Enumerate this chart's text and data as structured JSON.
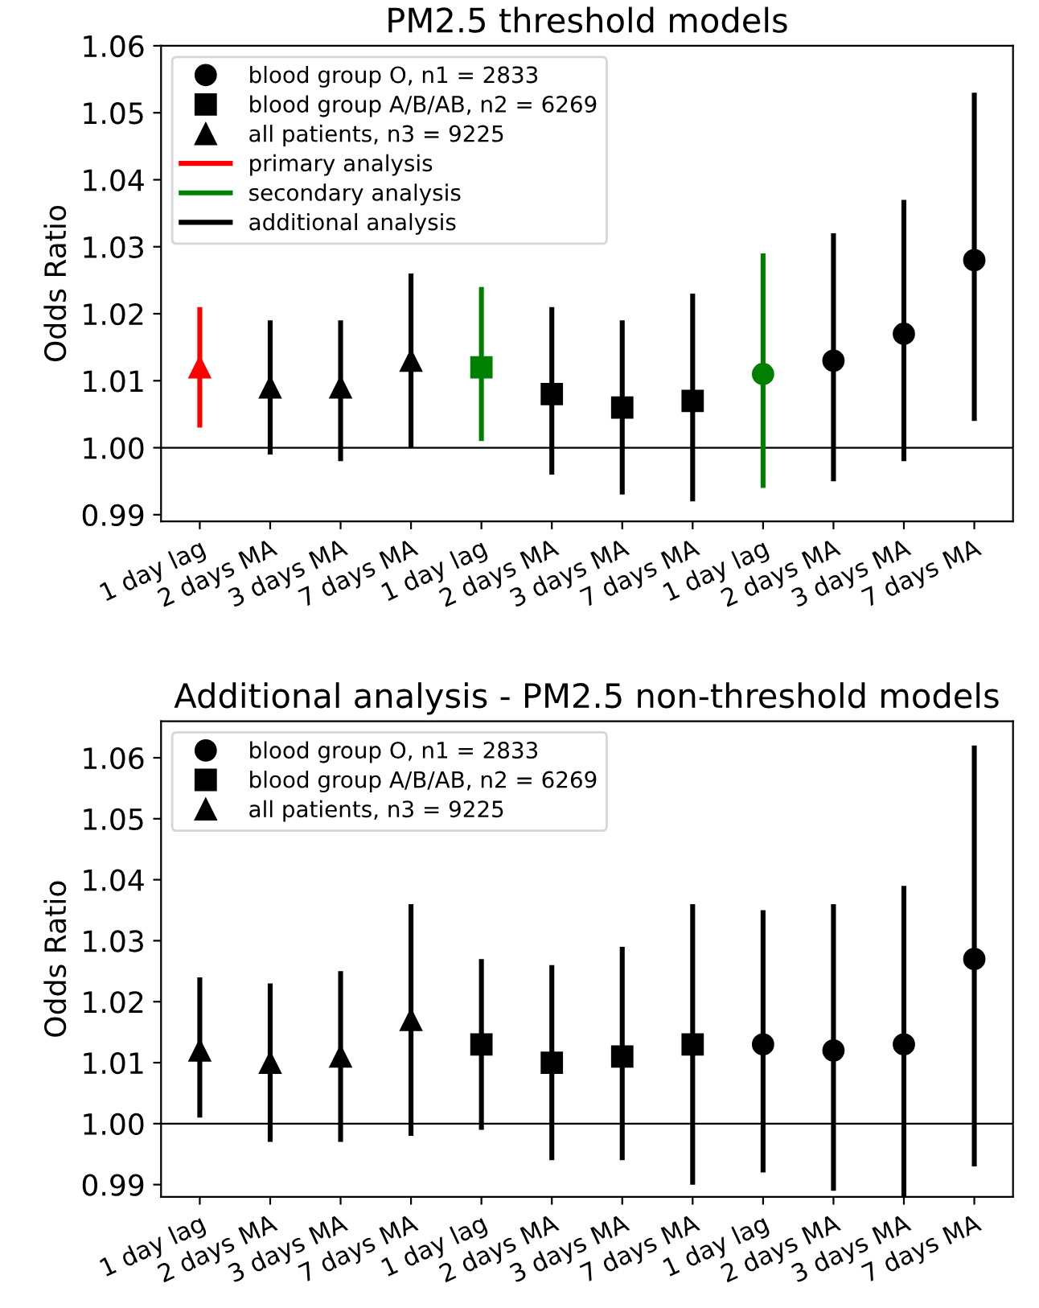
{
  "chart_data": [
    {
      "type": "scatter",
      "title": "PM2.5 threshold models",
      "ylabel": "Odds Ratio",
      "categories": [
        "1 day lag",
        "2 days MA",
        "3 days MA",
        "7 days MA",
        "1 day lag",
        "2 days MA",
        "3 days MA",
        "7 days MA",
        "1 day lag",
        "2 days MA",
        "3 days MA",
        "7 days MA"
      ],
      "ylim": [
        0.989,
        1.06
      ],
      "yticks": [
        {
          "value": 0.99,
          "label": "0.99"
        },
        {
          "value": 1.0,
          "label": "1.00"
        },
        {
          "value": 1.01,
          "label": "1.01"
        },
        {
          "value": 1.02,
          "label": "1.02"
        },
        {
          "value": 1.03,
          "label": "1.03"
        },
        {
          "value": 1.04,
          "label": "1.04"
        },
        {
          "value": 1.05,
          "label": "1.05"
        },
        {
          "value": 1.06,
          "label": "1.06"
        }
      ],
      "grid": false,
      "legend": "top left",
      "ref_lines": [
        {
          "axis": "y",
          "value": 1.0,
          "color": "#000000"
        }
      ],
      "series": [
        {
          "name": "blood group O, n1 = 2833",
          "marker": "circle",
          "color": "#000000",
          "values": [
            null,
            null,
            null,
            null,
            null,
            null,
            null,
            null,
            1.011,
            1.013,
            1.017,
            1.028
          ],
          "colors": [
            "#000000",
            "#000000",
            "#000000",
            "#000000",
            "#000000",
            "#000000",
            "#000000",
            "#000000",
            "#008000",
            "#000000",
            "#000000",
            "#000000"
          ],
          "errors": [
            null,
            null,
            null,
            null,
            null,
            null,
            null,
            null,
            [
              0.994,
              1.029
            ],
            [
              0.995,
              1.032
            ],
            [
              0.998,
              1.037
            ],
            [
              1.004,
              1.053
            ]
          ]
        },
        {
          "name": "blood group A/B/AB, n2 = 6269",
          "marker": "square",
          "color": "#000000",
          "values": [
            null,
            null,
            null,
            null,
            1.012,
            1.008,
            1.006,
            1.007,
            null,
            null,
            null,
            null
          ],
          "colors": [
            "#000000",
            "#000000",
            "#000000",
            "#000000",
            "#008000",
            "#000000",
            "#000000",
            "#000000",
            "#000000",
            "#000000",
            "#000000",
            "#000000"
          ],
          "errors": [
            null,
            null,
            null,
            null,
            [
              1.001,
              1.024
            ],
            [
              0.996,
              1.021
            ],
            [
              0.993,
              1.019
            ],
            [
              0.992,
              1.023
            ],
            null,
            null,
            null,
            null
          ]
        },
        {
          "name": "all patients, n3 = 9225",
          "marker": "triangle",
          "color": "#000000",
          "values": [
            1.012,
            1.009,
            1.009,
            1.013,
            null,
            null,
            null,
            null,
            null,
            null,
            null,
            null
          ],
          "colors": [
            "#ff0000",
            "#000000",
            "#000000",
            "#000000",
            "#000000",
            "#000000",
            "#000000",
            "#000000",
            "#000000",
            "#000000",
            "#000000",
            "#000000"
          ],
          "errors": [
            [
              1.003,
              1.021
            ],
            [
              0.999,
              1.019
            ],
            [
              0.998,
              1.019
            ],
            [
              1.0,
              1.026
            ],
            null,
            null,
            null,
            null,
            null,
            null,
            null,
            null
          ]
        },
        {
          "name": "primary analysis",
          "type": "line",
          "color": "#ff0000",
          "values": [
            null,
            null,
            null,
            null,
            null,
            null,
            null,
            null,
            null,
            null,
            null,
            null
          ]
        },
        {
          "name": "secondary analysis",
          "type": "line",
          "color": "#008000",
          "values": [
            null,
            null,
            null,
            null,
            null,
            null,
            null,
            null,
            null,
            null,
            null,
            null
          ]
        },
        {
          "name": "additional analysis",
          "type": "line",
          "color": "#000000",
          "values": [
            null,
            null,
            null,
            null,
            null,
            null,
            null,
            null,
            null,
            null,
            null,
            null
          ]
        }
      ]
    },
    {
      "type": "scatter",
      "title": "Additional analysis - PM2.5 non-threshold models",
      "ylabel": "Odds Ratio",
      "categories": [
        "1 day lag",
        "2 days MA",
        "3 days MA",
        "7 days MA",
        "1 day lag",
        "2 days MA",
        "3 days MA",
        "7 days MA",
        "1 day lag",
        "2 days MA",
        "3 days MA",
        "7 days MA"
      ],
      "ylim": [
        0.988,
        1.066
      ],
      "yticks": [
        {
          "value": 0.99,
          "label": "0.99"
        },
        {
          "value": 1.0,
          "label": "1.00"
        },
        {
          "value": 1.01,
          "label": "1.01"
        },
        {
          "value": 1.02,
          "label": "1.02"
        },
        {
          "value": 1.03,
          "label": "1.03"
        },
        {
          "value": 1.04,
          "label": "1.04"
        },
        {
          "value": 1.05,
          "label": "1.05"
        },
        {
          "value": 1.06,
          "label": "1.06"
        }
      ],
      "grid": false,
      "legend": "top left",
      "ref_lines": [
        {
          "axis": "y",
          "value": 1.0,
          "color": "#000000"
        }
      ],
      "series": [
        {
          "name": "blood group O, n1 = 2833",
          "marker": "circle",
          "color": "#000000",
          "values": [
            null,
            null,
            null,
            null,
            null,
            null,
            null,
            null,
            1.013,
            1.012,
            1.013,
            1.027
          ],
          "errors": [
            null,
            null,
            null,
            null,
            null,
            null,
            null,
            null,
            [
              0.992,
              1.035
            ],
            [
              0.989,
              1.036
            ],
            [
              0.988,
              1.039
            ],
            [
              0.993,
              1.062
            ]
          ]
        },
        {
          "name": "blood group A/B/AB, n2 = 6269",
          "marker": "square",
          "color": "#000000",
          "values": [
            null,
            null,
            null,
            null,
            1.013,
            1.01,
            1.011,
            1.013,
            null,
            null,
            null,
            null
          ],
          "errors": [
            null,
            null,
            null,
            null,
            [
              0.999,
              1.027
            ],
            [
              0.994,
              1.026
            ],
            [
              0.994,
              1.029
            ],
            [
              0.99,
              1.036
            ],
            null,
            null,
            null,
            null
          ]
        },
        {
          "name": "all patients, n3 = 9225",
          "marker": "triangle",
          "color": "#000000",
          "values": [
            1.012,
            1.01,
            1.011,
            1.017,
            null,
            null,
            null,
            null,
            null,
            null,
            null,
            null
          ],
          "errors": [
            [
              1.001,
              1.024
            ],
            [
              0.997,
              1.023
            ],
            [
              0.997,
              1.025
            ],
            [
              0.998,
              1.036
            ],
            null,
            null,
            null,
            null,
            null,
            null,
            null,
            null
          ]
        }
      ]
    }
  ]
}
